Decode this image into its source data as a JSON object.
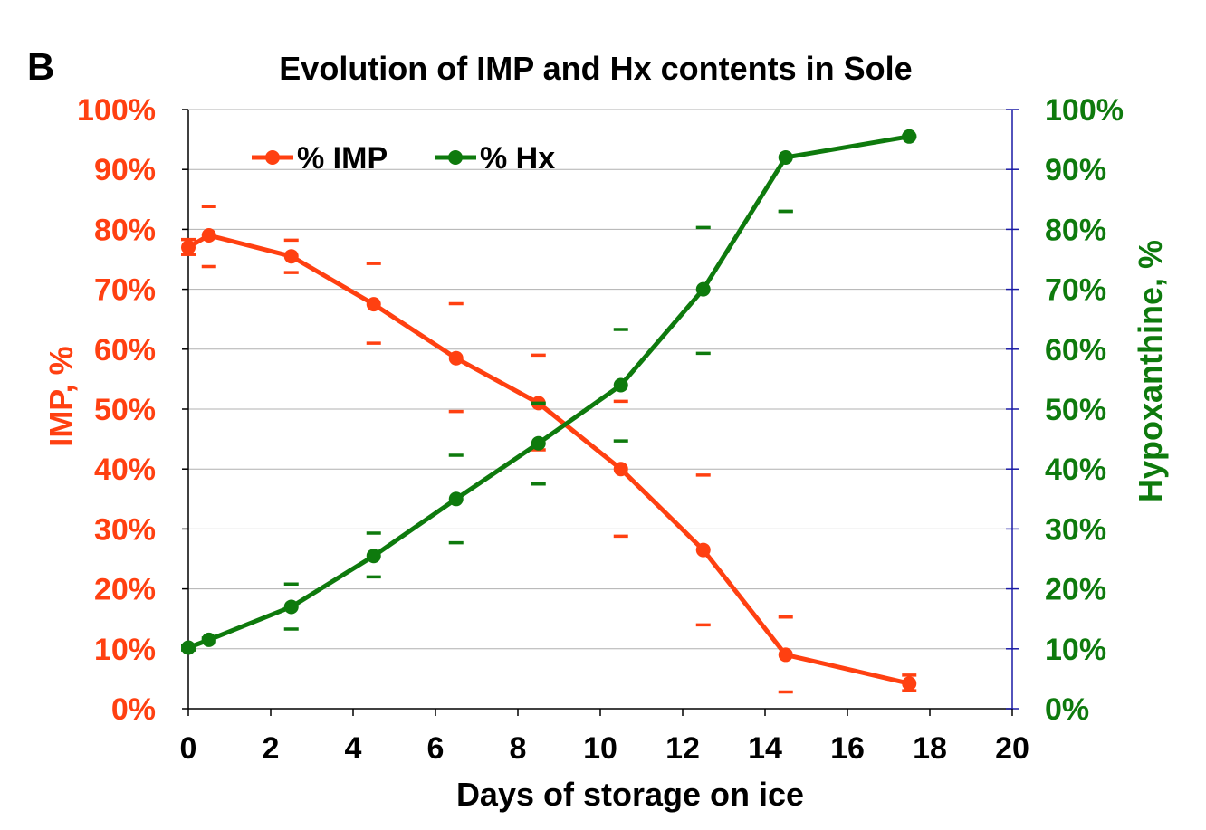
{
  "panel_label": "B",
  "chart_data": {
    "type": "line",
    "title": "Evolution of IMP and Hx contents in Sole",
    "xlabel": "Days of storage on ice",
    "ylabel_left": "IMP, %",
    "ylabel_right": "Hypoxanthine, %",
    "xlim": [
      0,
      20
    ],
    "ylim": [
      0,
      100
    ],
    "x_ticks": [
      "0",
      "2",
      "4",
      "6",
      "8",
      "10",
      "12",
      "14",
      "16",
      "18",
      "20"
    ],
    "y_ticks": [
      "0%",
      "10%",
      "20%",
      "30%",
      "40%",
      "50%",
      "60%",
      "70%",
      "80%",
      "90%",
      "100%"
    ],
    "grid": "horizontal",
    "legend_position": "top-left",
    "series": [
      {
        "name": "% IMP",
        "axis": "left",
        "color": "#ff4011",
        "x": [
          0,
          0.5,
          2.5,
          4.5,
          6.5,
          8.5,
          10.5,
          12.5,
          14.5,
          17.5
        ],
        "y": [
          77,
          79,
          75.5,
          67.5,
          58.5,
          51,
          40,
          26.5,
          9,
          4.2
        ],
        "error_upper": [
          78.3,
          83.8,
          78.2,
          74.3,
          67.6,
          59,
          51.3,
          39,
          15.3,
          5.6
        ],
        "error_lower": [
          75.8,
          73.8,
          72.8,
          61,
          49.6,
          43.2,
          28.8,
          14,
          2.8,
          3
        ]
      },
      {
        "name": "% Hx",
        "axis": "right",
        "color": "#0e7a0d",
        "x": [
          0,
          0.5,
          2.5,
          4.5,
          6.5,
          8.5,
          10.5,
          12.5,
          14.5,
          17.5
        ],
        "y": [
          10.2,
          11.5,
          17,
          25.5,
          35,
          44.3,
          54,
          70,
          92,
          95.5
        ],
        "error_upper": [
          10.6,
          11.8,
          20.8,
          29.3,
          42.3,
          51,
          63.3,
          80.3,
          83,
          95.6
        ],
        "error_lower": [
          9.8,
          11.2,
          13.3,
          22,
          27.7,
          37.5,
          44.7,
          59.3,
          83,
          95.4
        ]
      }
    ],
    "colors": {
      "left_axis_text": "#ff4011",
      "right_axis_text": "#0e7a0d",
      "right_axis_line": "#1a1aa6",
      "grid": "#b0b0b0"
    }
  }
}
